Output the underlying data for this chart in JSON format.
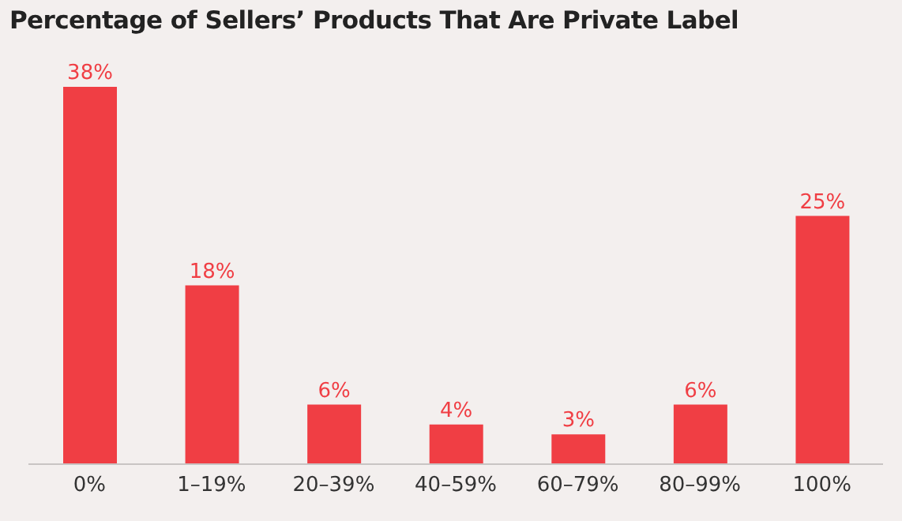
{
  "chart_data": {
    "type": "bar",
    "title": "Percentage of Sellers’ Products That Are Private Label",
    "categories": [
      "0%",
      "1–19%",
      "20–39%",
      "40–59%",
      "60–79%",
      "80–99%",
      "100%"
    ],
    "values": [
      38,
      18,
      6,
      4,
      3,
      6,
      25
    ],
    "value_labels": [
      "38%",
      "18%",
      "6%",
      "4%",
      "3%",
      "6%",
      "25%"
    ],
    "color": "#f03e44",
    "grid": false,
    "legend": false
  }
}
